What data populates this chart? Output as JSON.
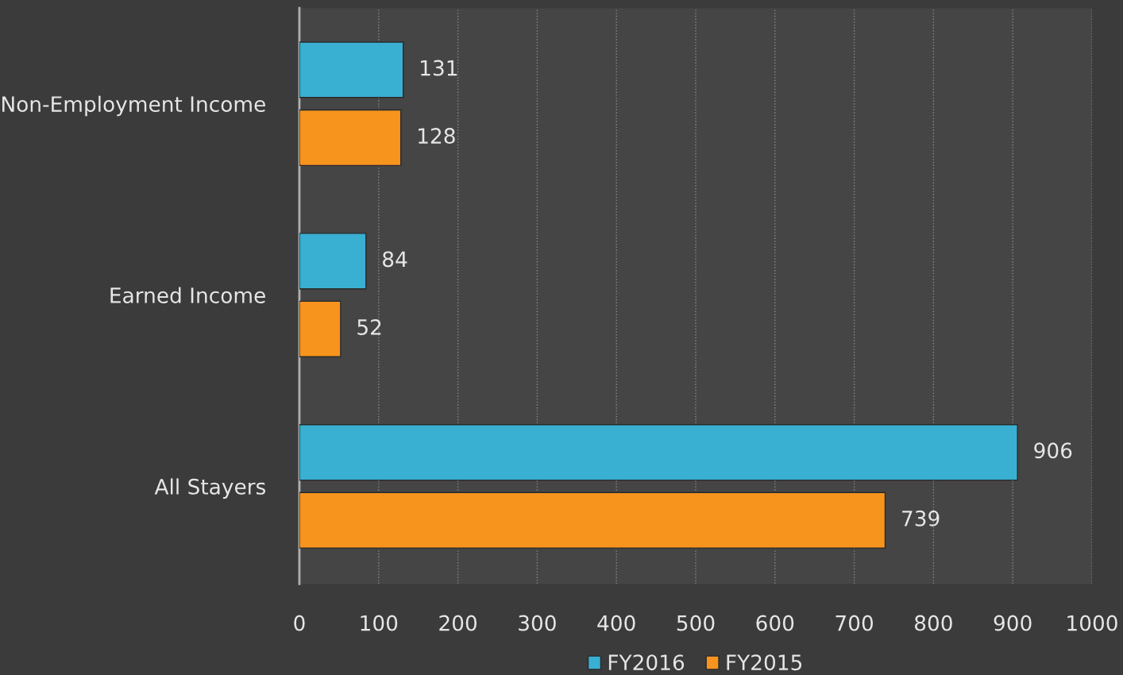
{
  "chart_data": {
    "type": "bar",
    "orientation": "horizontal",
    "categories": [
      "Non-Employment Income",
      "Earned Income",
      "All Stayers"
    ],
    "series": [
      {
        "name": "FY2016",
        "color": "#39afd2",
        "values": [
          131,
          84,
          906
        ]
      },
      {
        "name": "FY2015",
        "color": "#f7941e",
        "values": [
          128,
          52,
          739
        ]
      }
    ],
    "xlim": [
      0,
      1000
    ],
    "xticks": [
      0,
      100,
      200,
      300,
      400,
      500,
      600,
      700,
      800,
      900,
      1000
    ],
    "grid": "x",
    "legend": "bottom",
    "data_labels": true
  }
}
